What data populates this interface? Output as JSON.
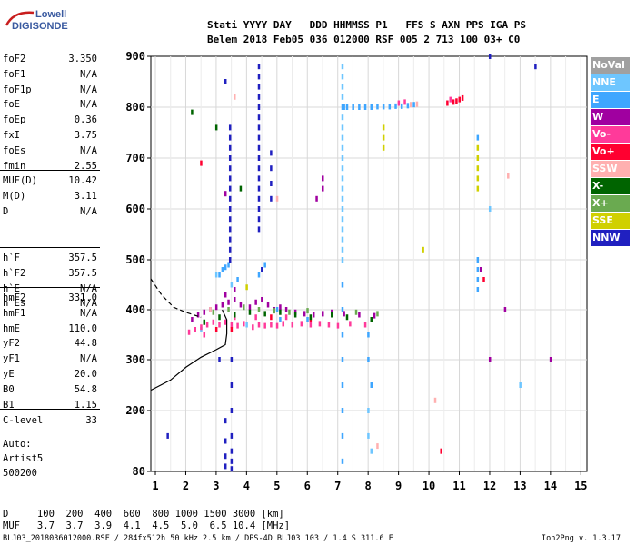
{
  "logo": {
    "line1": "Lowell",
    "line2": "DIGISONDE"
  },
  "header": {
    "row1": "Stati YYYY DAY   DDD HHMMSS P1   FFS S AXN PPS IGA PS",
    "row2": "Belem 2018 Feb05 036 012000 RSF 005 2 713 100 03+ C0"
  },
  "params_group1": [
    {
      "name": "foF2",
      "value": "3.350"
    },
    {
      "name": "foF1",
      "value": "N/A"
    },
    {
      "name": "foF1p",
      "value": "N/A"
    },
    {
      "name": "foE",
      "value": "N/A"
    },
    {
      "name": "foEp",
      "value": "0.36"
    },
    {
      "name": "fxI",
      "value": "3.75"
    },
    {
      "name": "foEs",
      "value": "N/A"
    },
    {
      "name": "fmin",
      "value": "2.55"
    }
  ],
  "params_group2": [
    {
      "name": "MUF(D)",
      "value": "10.42"
    },
    {
      "name": "M(D)",
      "value": "3.11"
    },
    {
      "name": "D",
      "value": "N/A"
    }
  ],
  "params_group3": [
    {
      "name": "h`F",
      "value": "357.5"
    },
    {
      "name": "h`F2",
      "value": "357.5"
    },
    {
      "name": "h`E",
      "value": "N/A"
    },
    {
      "name": "h`Es",
      "value": "N/A"
    }
  ],
  "params_group4": [
    {
      "name": "hmF2",
      "value": "331.0"
    },
    {
      "name": "hmF1",
      "value": "N/A"
    },
    {
      "name": "hmE",
      "value": "110.0"
    },
    {
      "name": "yF2",
      "value": "44.8"
    },
    {
      "name": "yF1",
      "value": "N/A"
    },
    {
      "name": "yE",
      "value": "20.0"
    },
    {
      "name": "B0",
      "value": "54.8"
    },
    {
      "name": "B1",
      "value": "1.15"
    }
  ],
  "params_group5": [
    {
      "name": "C-level",
      "value": "33"
    }
  ],
  "autoscale": {
    "line1": "Auto:",
    "line2": "Artist5",
    "line3": "500200"
  },
  "legend": [
    {
      "label": "NoVal",
      "color": "#a0a0a0"
    },
    {
      "label": "NNE",
      "color": "#6ec6ff"
    },
    {
      "label": "E",
      "color": "#3ea6ff"
    },
    {
      "label": "W",
      "color": "#a000a0"
    },
    {
      "label": "Vo-",
      "color": "#ff3a9a"
    },
    {
      "label": "Vo+",
      "color": "#ff0030"
    },
    {
      "label": "SSW",
      "color": "#ffb0b0"
    },
    {
      "label": "X-",
      "color": "#006400"
    },
    {
      "label": "X+",
      "color": "#6aaa50"
    },
    {
      "label": "SSE",
      "color": "#d0d000"
    },
    {
      "label": "NNW",
      "color": "#2020c0"
    }
  ],
  "muf_table": {
    "row1": "D     100  200  400  600  800 1000 1500 3000 [km]",
    "row2": "MUF   3.7  3.7  3.9  4.1  4.5  5.0  6.5 10.4 [MHz]"
  },
  "footer": {
    "left": "BLJ03_2018036012000.RSF / 284fx512h 50 kHz 2.5 km / DPS-4D BLJ03 103 / 1.4 S 311.6 E",
    "right": "Ion2Png v. 1.3.17"
  },
  "chart_data": {
    "type": "scatter",
    "title": "",
    "xlabel": "",
    "ylabel": "",
    "xlim": [
      0.85,
      15.2
    ],
    "ylim": [
      80,
      900
    ],
    "x_ticks": [
      1,
      2,
      3,
      4,
      5,
      6,
      7,
      8,
      9,
      10,
      11,
      12,
      13,
      14,
      15
    ],
    "y_ticks": [
      80,
      200,
      300,
      400,
      500,
      600,
      700,
      800,
      900
    ],
    "grid": true,
    "legend_position": "right",
    "series": [
      {
        "name": "E",
        "color": "#3ea6ff",
        "points": [
          [
            7.15,
            800
          ],
          [
            7.2,
            800
          ],
          [
            7.3,
            800
          ],
          [
            7.5,
            800
          ],
          [
            7.7,
            800
          ],
          [
            7.9,
            800
          ],
          [
            8.1,
            800
          ],
          [
            8.3,
            801
          ],
          [
            8.5,
            801
          ],
          [
            8.7,
            801
          ],
          [
            8.9,
            802
          ],
          [
            9.1,
            802
          ],
          [
            9.3,
            803
          ],
          [
            9.5,
            805
          ],
          [
            3.2,
            480
          ],
          [
            3.3,
            485
          ],
          [
            3.1,
            470
          ],
          [
            3.4,
            490
          ],
          [
            4.5,
            480
          ],
          [
            4.6,
            490
          ],
          [
            3.7,
            460
          ],
          [
            4.4,
            470
          ],
          [
            11.6,
            500
          ],
          [
            11.6,
            480
          ],
          [
            11.6,
            460
          ],
          [
            11.6,
            440
          ],
          [
            7.15,
            300
          ],
          [
            7.15,
            250
          ],
          [
            7.15,
            200
          ],
          [
            7.15,
            150
          ],
          [
            7.15,
            100
          ],
          [
            7.15,
            350
          ],
          [
            7.15,
            400
          ],
          [
            7.15,
            450
          ],
          [
            8.0,
            350
          ],
          [
            8.0,
            300
          ],
          [
            8.1,
            250
          ],
          [
            5.0,
            400
          ],
          [
            5.1,
            380
          ],
          [
            6.0,
            380
          ],
          [
            11.6,
            740
          ]
        ]
      },
      {
        "name": "NNE",
        "color": "#6ec6ff",
        "points": [
          [
            7.15,
            880
          ],
          [
            7.15,
            860
          ],
          [
            7.15,
            840
          ],
          [
            7.15,
            820
          ],
          [
            7.15,
            780
          ],
          [
            7.15,
            760
          ],
          [
            7.15,
            740
          ],
          [
            7.15,
            720
          ],
          [
            7.15,
            700
          ],
          [
            7.15,
            680
          ],
          [
            7.15,
            660
          ],
          [
            7.15,
            640
          ],
          [
            7.15,
            620
          ],
          [
            7.15,
            600
          ],
          [
            7.15,
            580
          ],
          [
            7.15,
            560
          ],
          [
            7.15,
            540
          ],
          [
            7.15,
            520
          ],
          [
            7.15,
            500
          ],
          [
            3.0,
            470
          ],
          [
            3.5,
            450
          ],
          [
            2.5,
            360
          ],
          [
            4.0,
            370
          ],
          [
            8.0,
            200
          ],
          [
            8.0,
            150
          ],
          [
            8.1,
            120
          ],
          [
            12.0,
            600
          ],
          [
            13.0,
            250
          ]
        ]
      },
      {
        "name": "W",
        "color": "#a000a0",
        "points": [
          [
            2.2,
            380
          ],
          [
            2.4,
            390
          ],
          [
            2.6,
            395
          ],
          [
            2.8,
            400
          ],
          [
            3.0,
            405
          ],
          [
            3.2,
            410
          ],
          [
            3.4,
            415
          ],
          [
            3.6,
            420
          ],
          [
            3.8,
            410
          ],
          [
            4.1,
            405
          ],
          [
            4.3,
            415
          ],
          [
            4.5,
            420
          ],
          [
            4.7,
            410
          ],
          [
            4.9,
            400
          ],
          [
            5.1,
            405
          ],
          [
            5.3,
            400
          ],
          [
            5.6,
            395
          ],
          [
            5.9,
            392
          ],
          [
            6.2,
            390
          ],
          [
            6.5,
            392
          ],
          [
            6.8,
            395
          ],
          [
            7.2,
            392
          ],
          [
            7.7,
            390
          ],
          [
            8.2,
            388
          ],
          [
            3.3,
            430
          ],
          [
            3.6,
            440
          ],
          [
            6.5,
            640
          ],
          [
            6.5,
            660
          ],
          [
            6.3,
            620
          ],
          [
            11.7,
            480
          ],
          [
            12.0,
            300
          ],
          [
            14.0,
            300
          ],
          [
            3.3,
            630
          ],
          [
            12.5,
            400
          ]
        ]
      },
      {
        "name": "Vo-",
        "color": "#ff3a9a",
        "points": [
          [
            2.1,
            355
          ],
          [
            2.3,
            360
          ],
          [
            2.5,
            365
          ],
          [
            2.7,
            370
          ],
          [
            2.9,
            375
          ],
          [
            3.1,
            370
          ],
          [
            3.3,
            375
          ],
          [
            3.5,
            370
          ],
          [
            3.7,
            368
          ],
          [
            3.9,
            372
          ],
          [
            4.2,
            365
          ],
          [
            4.4,
            370
          ],
          [
            4.6,
            368
          ],
          [
            4.8,
            370
          ],
          [
            5.0,
            368
          ],
          [
            5.2,
            372
          ],
          [
            5.5,
            370
          ],
          [
            5.8,
            372
          ],
          [
            6.1,
            370
          ],
          [
            6.4,
            372
          ],
          [
            6.7,
            370
          ],
          [
            7.0,
            368
          ],
          [
            7.4,
            372
          ],
          [
            7.9,
            370
          ],
          [
            9.0,
            808
          ],
          [
            9.2,
            810
          ],
          [
            10.7,
            815
          ],
          [
            2.6,
            350
          ],
          [
            3.6,
            385
          ],
          [
            4.3,
            385
          ],
          [
            5.3,
            385
          ]
        ]
      },
      {
        "name": "Vo+",
        "color": "#ff0030",
        "points": [
          [
            10.8,
            810
          ],
          [
            10.9,
            812
          ],
          [
            11.0,
            815
          ],
          [
            11.1,
            818
          ],
          [
            10.6,
            808
          ],
          [
            3.0,
            360
          ],
          [
            3.5,
            360
          ],
          [
            4.8,
            385
          ],
          [
            6.1,
            380
          ],
          [
            10.4,
            120
          ],
          [
            11.8,
            460
          ],
          [
            2.5,
            690
          ]
        ]
      },
      {
        "name": "SSW",
        "color": "#ffb0b0",
        "points": [
          [
            9.4,
            805
          ],
          [
            9.6,
            806
          ],
          [
            12.6,
            665
          ],
          [
            3.6,
            820
          ],
          [
            5.0,
            620
          ],
          [
            10.2,
            220
          ],
          [
            2.8,
            400
          ],
          [
            8.3,
            130
          ]
        ]
      },
      {
        "name": "X-",
        "color": "#006400",
        "points": [
          [
            2.6,
            375
          ],
          [
            3.1,
            385
          ],
          [
            3.6,
            390
          ],
          [
            4.1,
            395
          ],
          [
            4.6,
            392
          ],
          [
            5.1,
            395
          ],
          [
            5.6,
            390
          ],
          [
            6.1,
            385
          ],
          [
            6.8,
            390
          ],
          [
            7.3,
            385
          ],
          [
            8.1,
            380
          ],
          [
            2.2,
            790
          ],
          [
            3.0,
            760
          ],
          [
            3.8,
            640
          ]
        ]
      },
      {
        "name": "X+",
        "color": "#6aaa50",
        "points": [
          [
            2.9,
            395
          ],
          [
            3.4,
            400
          ],
          [
            3.9,
            405
          ],
          [
            4.4,
            400
          ],
          [
            4.9,
            398
          ],
          [
            5.4,
            395
          ],
          [
            6.0,
            398
          ],
          [
            7.6,
            395
          ],
          [
            8.3,
            392
          ]
        ]
      },
      {
        "name": "SSE",
        "color": "#d0d000",
        "points": [
          [
            11.6,
            720
          ],
          [
            11.6,
            700
          ],
          [
            11.6,
            680
          ],
          [
            11.6,
            660
          ],
          [
            11.6,
            640
          ],
          [
            8.5,
            760
          ],
          [
            8.5,
            740
          ],
          [
            8.5,
            720
          ],
          [
            9.8,
            520
          ],
          [
            4.0,
            445
          ]
        ]
      },
      {
        "name": "NNW",
        "color": "#2020c0",
        "points": [
          [
            3.3,
            850
          ],
          [
            4.4,
            880
          ],
          [
            4.4,
            860
          ],
          [
            4.4,
            840
          ],
          [
            4.4,
            820
          ],
          [
            4.4,
            800
          ],
          [
            4.4,
            780
          ],
          [
            4.4,
            760
          ],
          [
            4.4,
            740
          ],
          [
            4.4,
            720
          ],
          [
            4.4,
            700
          ],
          [
            4.4,
            680
          ],
          [
            4.4,
            660
          ],
          [
            4.4,
            640
          ],
          [
            4.4,
            620
          ],
          [
            4.4,
            600
          ],
          [
            4.4,
            580
          ],
          [
            4.4,
            560
          ],
          [
            3.45,
            760
          ],
          [
            3.45,
            740
          ],
          [
            3.45,
            720
          ],
          [
            3.45,
            700
          ],
          [
            3.45,
            680
          ],
          [
            3.45,
            660
          ],
          [
            3.45,
            640
          ],
          [
            3.45,
            620
          ],
          [
            3.45,
            600
          ],
          [
            3.45,
            580
          ],
          [
            3.45,
            560
          ],
          [
            3.45,
            540
          ],
          [
            3.45,
            520
          ],
          [
            3.45,
            500
          ],
          [
            3.5,
            300
          ],
          [
            3.5,
            250
          ],
          [
            3.5,
            200
          ],
          [
            3.5,
            150
          ],
          [
            3.5,
            120
          ],
          [
            3.5,
            100
          ],
          [
            3.5,
            85
          ],
          [
            3.3,
            180
          ],
          [
            3.3,
            140
          ],
          [
            3.3,
            110
          ],
          [
            3.3,
            90
          ],
          [
            4.8,
            620
          ],
          [
            4.8,
            650
          ],
          [
            4.8,
            680
          ],
          [
            4.8,
            710
          ],
          [
            1.4,
            150
          ],
          [
            12.0,
            900
          ],
          [
            13.5,
            880
          ],
          [
            3.1,
            300
          ],
          [
            4.5,
            480
          ]
        ]
      }
    ],
    "curves": [
      {
        "name": "modelled",
        "style": "solid",
        "points": [
          [
            0.85,
            240
          ],
          [
            1.5,
            260
          ],
          [
            2.0,
            285
          ],
          [
            2.5,
            305
          ],
          [
            3.0,
            320
          ],
          [
            3.3,
            330
          ],
          [
            3.35,
            352
          ],
          [
            3.35,
            380
          ],
          [
            3.2,
            400
          ]
        ]
      },
      {
        "name": "extrapolated",
        "style": "dashed",
        "points": [
          [
            0.85,
            462
          ],
          [
            1.2,
            430
          ],
          [
            1.6,
            405
          ],
          [
            2.0,
            395
          ],
          [
            2.5,
            385
          ]
        ]
      }
    ]
  }
}
